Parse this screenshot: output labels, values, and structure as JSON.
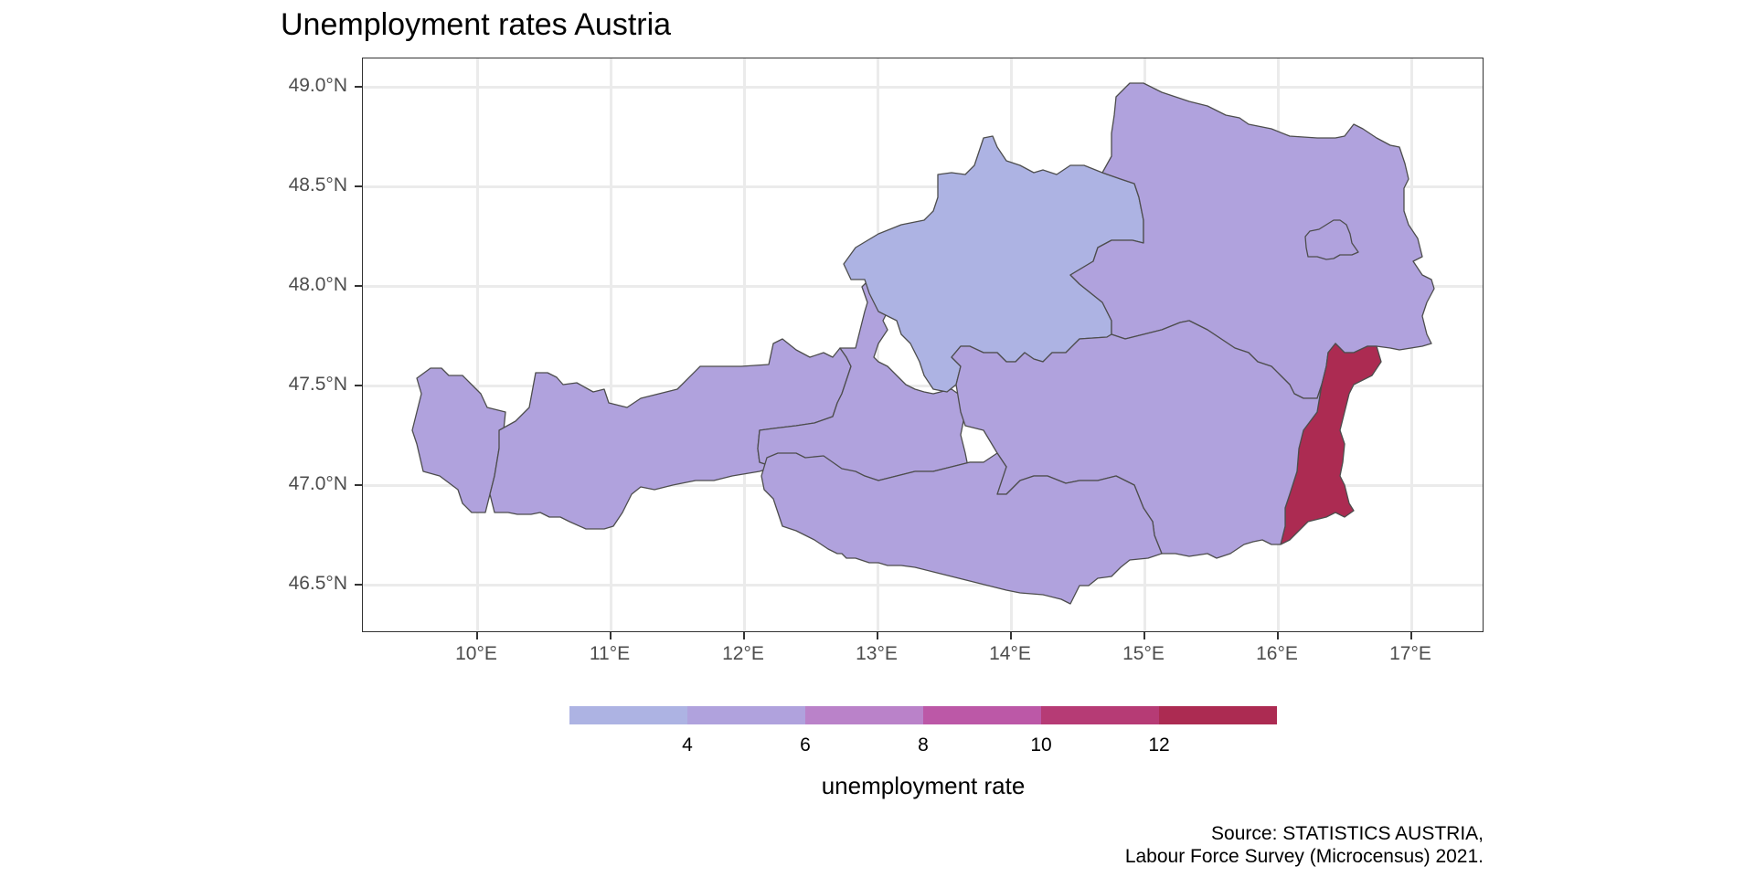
{
  "title": "Unemployment rates Austria",
  "caption": {
    "line1": "Source: STATISTICS AUSTRIA,",
    "line2": "Labour Force Survey (Microcensus) 2021."
  },
  "legend": {
    "title": "unemployment rate",
    "breaks": [
      2,
      4,
      6,
      8,
      10,
      12,
      14
    ],
    "labels": [
      "4",
      "6",
      "8",
      "10",
      "12"
    ],
    "colors": [
      "#adb3e3",
      "#b0a2dd",
      "#ba82c9",
      "#bc58a7",
      "#b63b75",
      "#ac2b52"
    ]
  },
  "axes": {
    "y_ticks": [
      "46.5°N",
      "47.0°N",
      "47.5°N",
      "48.0°N",
      "48.5°N",
      "49.0°N"
    ],
    "x_ticks": [
      "10°E",
      "11°E",
      "12°E",
      "13°E",
      "14°E",
      "15°E",
      "16°E",
      "17°E"
    ]
  },
  "map": {
    "lon_range": [
      9.15,
      17.53
    ],
    "lat_range": [
      46.25,
      49.13
    ],
    "grid": true,
    "border_color": "#4d4d4d",
    "regions": [
      {
        "name": "Vorarlberg",
        "rate": 5.0,
        "color": "#b0a2dd"
      },
      {
        "name": "Tirol",
        "rate": 4.5,
        "color": "#b0a2dd"
      },
      {
        "name": "Salzburg",
        "rate": 4.0,
        "color": "#b0a2dd"
      },
      {
        "name": "Oberösterreich",
        "rate": 3.5,
        "color": "#adb3e3"
      },
      {
        "name": "Niederösterreich",
        "rate": 5.0,
        "color": "#b0a2dd"
      },
      {
        "name": "Wien",
        "rate": 12.5,
        "color": "#ac2b52"
      },
      {
        "name": "Burgenland",
        "rate": 5.0,
        "color": "#b0a2dd"
      },
      {
        "name": "Steiermark",
        "rate": 5.0,
        "color": "#b0a2dd"
      },
      {
        "name": "Kärnten",
        "rate": 5.5,
        "color": "#b0a2dd"
      }
    ]
  }
}
